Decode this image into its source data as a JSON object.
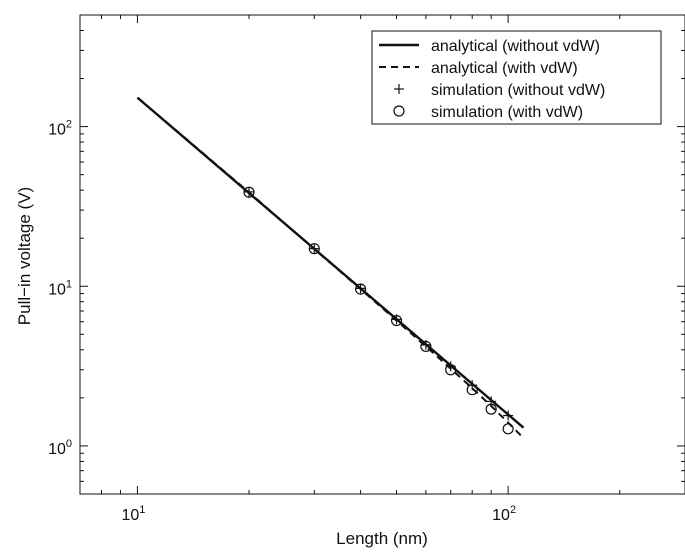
{
  "chart_data": {
    "type": "line",
    "xlabel": "Length (nm)",
    "ylabel": "Pull−in voltage (V)",
    "xscale": "log",
    "yscale": "log",
    "xlim": [
      7,
      300
    ],
    "ylim": [
      0.5,
      500
    ],
    "x_ticks": [
      {
        "value": 10,
        "base": "10",
        "exp": "1"
      },
      {
        "value": 100,
        "base": "10",
        "exp": "2"
      }
    ],
    "y_ticks": [
      {
        "value": 1,
        "base": "10",
        "exp": "0"
      },
      {
        "value": 10,
        "base": "10",
        "exp": "1"
      },
      {
        "value": 100,
        "base": "10",
        "exp": "2"
      }
    ],
    "legend_position": "top-right",
    "color": "#111111",
    "series": [
      {
        "name": "analytical (without vdW)",
        "style": "solid",
        "x": [
          10,
          110
        ],
        "y": [
          152,
          1.3
        ]
      },
      {
        "name": "analytical (with vdW)",
        "style": "dashed",
        "x": [
          10,
          20,
          30,
          40,
          50,
          60,
          70,
          80,
          90,
          100,
          110
        ],
        "y": [
          152,
          38.8,
          17.1,
          9.6,
          6.1,
          4.2,
          3.05,
          2.3,
          1.78,
          1.4,
          1.12
        ]
      },
      {
        "name": "simulation (without vdW)",
        "style": "plus",
        "x": [
          20,
          30,
          40,
          50,
          60,
          70,
          80,
          90,
          100
        ],
        "y": [
          39,
          17.2,
          9.7,
          6.2,
          4.3,
          3.15,
          2.4,
          1.9,
          1.55
        ]
      },
      {
        "name": "simulation (with vdW)",
        "style": "circle",
        "x": [
          20,
          30,
          40,
          50,
          60,
          70,
          80,
          90,
          100
        ],
        "y": [
          38.8,
          17.2,
          9.6,
          6.1,
          4.2,
          3.0,
          2.25,
          1.7,
          1.28
        ]
      }
    ]
  }
}
